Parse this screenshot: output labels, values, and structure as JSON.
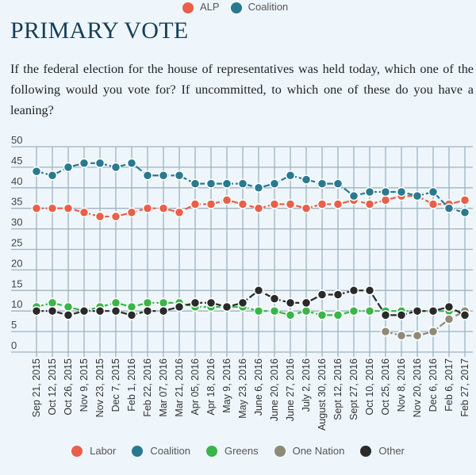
{
  "top_legend": [
    {
      "name": "ALP",
      "color": "#e8604a"
    },
    {
      "name": "Coalition",
      "color": "#2a7a8f"
    }
  ],
  "title": "PRIMARY VOTE",
  "question": "If the federal election for the house of representatives was held today, which one of the following would you vote for? If uncommitted, to which one of these do you have a leaning?",
  "chart_data": {
    "type": "line",
    "ylim": [
      0,
      50
    ],
    "yticks": [
      0,
      5,
      10,
      15,
      20,
      25,
      30,
      35,
      40,
      45,
      50
    ],
    "grid": true,
    "legend_position": "bottom",
    "categories": [
      "Sep 21, 2015",
      "Oct 12, 2015",
      "Oct 26, 2015",
      "Nov 9, 2015",
      "Nov 23, 2015",
      "Dec 7, 2015",
      "Feb 1, 2016",
      "Feb 22, 2016",
      "Mar 07, 2016",
      "Mar 21, 2016",
      "Apr 05, 2016",
      "Apr 18, 2016",
      "May 9, 2016",
      "May 23, 2016",
      "June 6, 2016",
      "June 20, 2016",
      "June 27, 2016",
      "July 2, 2016",
      "August 30, 2016",
      "Sept 12, 2016",
      "Sept 27, 2016",
      "Oct 10, 2016",
      "Oct 25, 2016",
      "Nov 8, 2016",
      "Nov 20, 2016",
      "Dec 6, 2016",
      "Feb 6, 2017",
      "Feb 27, 2017"
    ],
    "series": [
      {
        "name": "Labor",
        "color": "#e8604a",
        "values": [
          35,
          35,
          35,
          34,
          33,
          33,
          34,
          35,
          35,
          34,
          36,
          36,
          37,
          36,
          35,
          36,
          36,
          35,
          36,
          36,
          37,
          36,
          37,
          38,
          38,
          36,
          36,
          37
        ]
      },
      {
        "name": "Coalition",
        "color": "#2a7a8f",
        "values": [
          44,
          43,
          45,
          46,
          46,
          45,
          46,
          43,
          43,
          43,
          41,
          41,
          41,
          41,
          40,
          41,
          43,
          42,
          41,
          41,
          38,
          39,
          39,
          39,
          38,
          39,
          35,
          34
        ]
      },
      {
        "name": "Greens",
        "color": "#3bb54a",
        "values": [
          11,
          12,
          11,
          10,
          11,
          12,
          11,
          12,
          12,
          12,
          11,
          11,
          11,
          11,
          10,
          10,
          9,
          10,
          9,
          9,
          10,
          10,
          10,
          10,
          10,
          10,
          10,
          10
        ]
      },
      {
        "name": "One Nation",
        "color": "#8f8a78",
        "values": [
          null,
          null,
          null,
          null,
          null,
          null,
          null,
          null,
          null,
          null,
          null,
          null,
          null,
          null,
          null,
          null,
          null,
          null,
          null,
          null,
          null,
          null,
          5,
          4,
          4,
          5,
          8,
          10
        ]
      },
      {
        "name": "Other",
        "color": "#2a2a2a",
        "values": [
          10,
          10,
          9,
          10,
          10,
          10,
          9,
          10,
          10,
          11,
          12,
          12,
          11,
          12,
          15,
          13,
          12,
          12,
          14,
          14,
          15,
          15,
          9,
          9,
          10,
          10,
          11,
          9
        ]
      }
    ]
  }
}
